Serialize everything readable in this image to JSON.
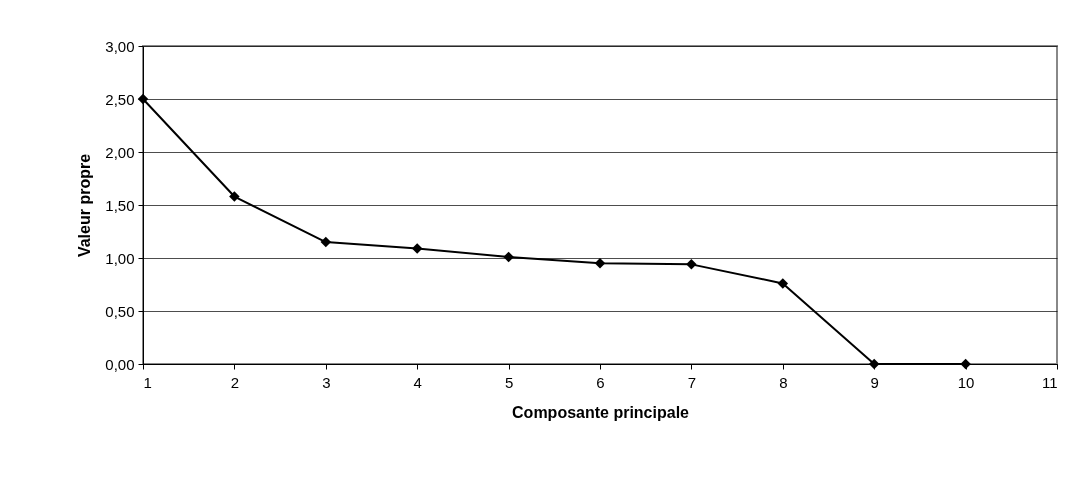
{
  "chart_data": {
    "type": "line",
    "xlabel": "Composante principale",
    "ylabel": "Valeur propre",
    "x": [
      1,
      2,
      3,
      4,
      5,
      6,
      7,
      8,
      9,
      10
    ],
    "series": [
      {
        "color": "#000000",
        "values": [
          2.5,
          1.58,
          1.15,
          1.09,
          1.01,
          0.95,
          0.94,
          0.76,
          0,
          0
        ]
      }
    ],
    "xlim": [
      1,
      11
    ],
    "xticks": [
      1,
      2,
      3,
      4,
      5,
      6,
      7,
      8,
      9,
      10,
      11
    ],
    "ylim": [
      0,
      3
    ],
    "yticks": [
      {
        "value": 0,
        "label": "0,00"
      },
      {
        "value": 0.5,
        "label": "0,50"
      },
      {
        "value": 1,
        "label": "1,00"
      },
      {
        "value": 1.5,
        "label": "1,50"
      },
      {
        "value": 2,
        "label": "2,00"
      },
      {
        "value": 2.5,
        "label": "2,50"
      },
      {
        "value": 3,
        "label": "3,00"
      }
    ],
    "grid": "y",
    "marker": "diamond",
    "line_style": "solid",
    "legend": false
  }
}
